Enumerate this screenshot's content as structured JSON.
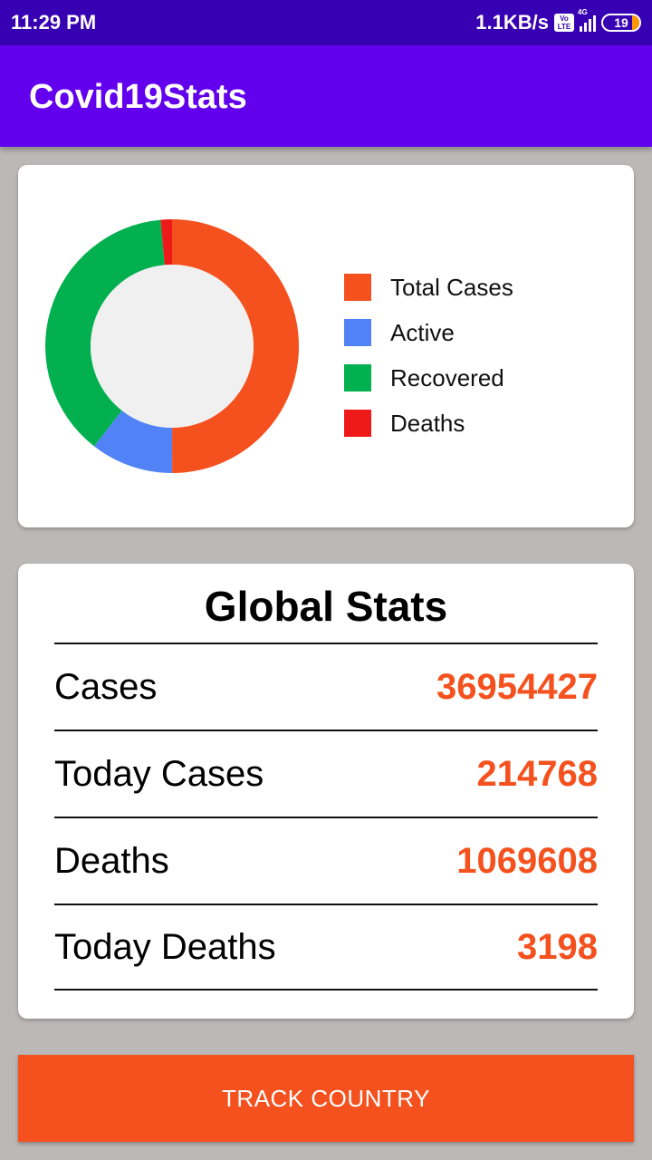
{
  "status_bar": {
    "time": "11:29 PM",
    "net_speed": "1.1KB/s",
    "volte_top": "Vo",
    "volte_bottom": "LTE",
    "network": "4G",
    "battery": "19"
  },
  "app_bar": {
    "title": "Covid19Stats"
  },
  "chart_data": {
    "type": "pie",
    "style": "donut",
    "series": [
      {
        "name": "Total Cases",
        "color": "#f4511e",
        "value": 36954427
      },
      {
        "name": "Active",
        "color": "#5283f6",
        "value": 7800000
      },
      {
        "name": "Recovered",
        "color": "#03b04f",
        "value": 28100000
      },
      {
        "name": "Deaths",
        "color": "#ee1a1a",
        "value": 1069608
      }
    ],
    "legend_position": "right"
  },
  "global_stats": {
    "title": "Global Stats",
    "rows": [
      {
        "label": "Cases",
        "value": "36954427"
      },
      {
        "label": "Today Cases",
        "value": "214768"
      },
      {
        "label": "Deaths",
        "value": "1069608"
      },
      {
        "label": "Today Deaths",
        "value": "3198"
      }
    ]
  },
  "actions": {
    "track_country_label": "TRACK COUNTRY"
  },
  "colors": {
    "accent": "#f4511e",
    "app_bar": "#6200ee",
    "status_bar": "#3700b3",
    "background": "#bdb8b8"
  }
}
